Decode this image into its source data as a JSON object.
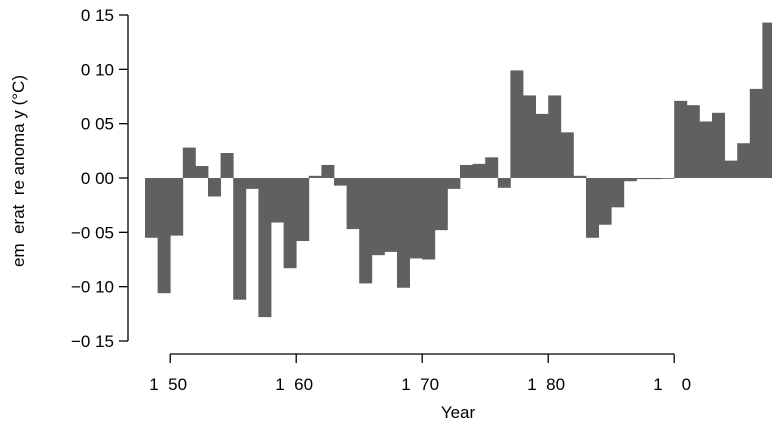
{
  "chart_data": {
    "type": "bar",
    "title": "",
    "xlabel": "Year",
    "ylabel": "em  erat  re anoma y (°C)",
    "xlim": [
      1948,
      1998
    ],
    "ylim": [
      -0.15,
      0.15
    ],
    "grid": false,
    "bar_color": "#606060",
    "x_ticks": [
      {
        "value": 1950,
        "label": "1  50"
      },
      {
        "value": 1960,
        "label": "1  60"
      },
      {
        "value": 1970,
        "label": "1  70"
      },
      {
        "value": 1980,
        "label": "1  80"
      },
      {
        "value": 1990,
        "label": "1    0"
      }
    ],
    "y_ticks": [
      {
        "value": 0.15,
        "label": "0 15"
      },
      {
        "value": 0.1,
        "label": "0 10"
      },
      {
        "value": 0.05,
        "label": "0 05"
      },
      {
        "value": 0.0,
        "label": "0 00"
      },
      {
        "value": -0.05,
        "label": "−0 05"
      },
      {
        "value": -0.1,
        "label": "−0 10"
      },
      {
        "value": -0.15,
        "label": "−0 15"
      }
    ],
    "x": [
      1948,
      1949,
      1950,
      1951,
      1952,
      1953,
      1954,
      1955,
      1956,
      1957,
      1958,
      1959,
      1960,
      1961,
      1962,
      1963,
      1964,
      1965,
      1966,
      1967,
      1968,
      1969,
      1970,
      1971,
      1972,
      1973,
      1974,
      1975,
      1976,
      1977,
      1978,
      1979,
      1980,
      1981,
      1982,
      1983,
      1984,
      1985,
      1986,
      1987,
      1988,
      1989,
      1990,
      1991,
      1992,
      1993,
      1994,
      1995,
      1996,
      1997
    ],
    "values": [
      -0.055,
      -0.106,
      -0.053,
      0.028,
      0.011,
      -0.017,
      0.023,
      -0.112,
      -0.01,
      -0.128,
      -0.041,
      -0.083,
      -0.058,
      0.002,
      0.012,
      -0.007,
      -0.047,
      -0.097,
      -0.071,
      -0.068,
      -0.101,
      -0.074,
      -0.075,
      -0.048,
      -0.01,
      0.012,
      0.013,
      0.019,
      -0.009,
      0.099,
      0.076,
      0.059,
      0.076,
      0.042,
      0.002,
      -0.055,
      -0.043,
      -0.027,
      -0.003,
      -0.001,
      -0.001,
      0.0,
      0.071,
      0.067,
      0.052,
      0.06,
      0.016,
      0.032,
      0.082,
      0.143
    ]
  }
}
